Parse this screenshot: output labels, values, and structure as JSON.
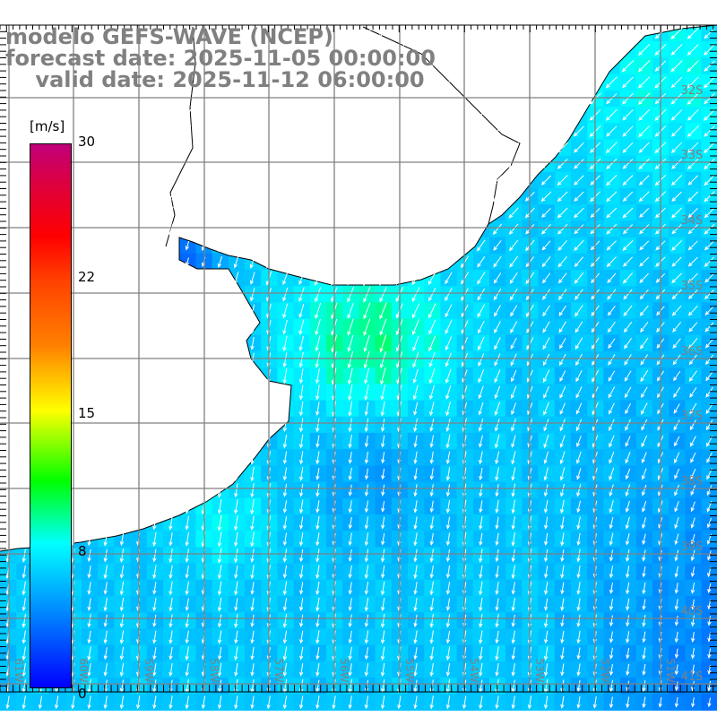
{
  "title": {
    "line1": "modelo GEFS-WAVE (NCEP)",
    "line2": "forecast date: 2025-11-05 00:00:00",
    "line3": "    valid date: 2025-11-12 06:00:00"
  },
  "colorbar": {
    "unit": "[m/s]",
    "labels": [
      "30",
      "22",
      "15",
      "8",
      "0"
    ],
    "min": 0,
    "max": 30
  },
  "lat_labels": [
    "32S",
    "33S",
    "34S",
    "35S",
    "36S",
    "37S",
    "38S",
    "39S",
    "40S",
    "41S"
  ],
  "lon_labels": [
    "61W",
    "60W",
    "59W",
    "58W",
    "57W",
    "56W",
    "55W",
    "54W",
    "53W",
    "52W",
    "51W"
  ],
  "colors": {
    "grid": "#808080",
    "land": "#ffffff",
    "coast": "#000000",
    "arrow": "#ffffff",
    "label": "#808080"
  }
}
